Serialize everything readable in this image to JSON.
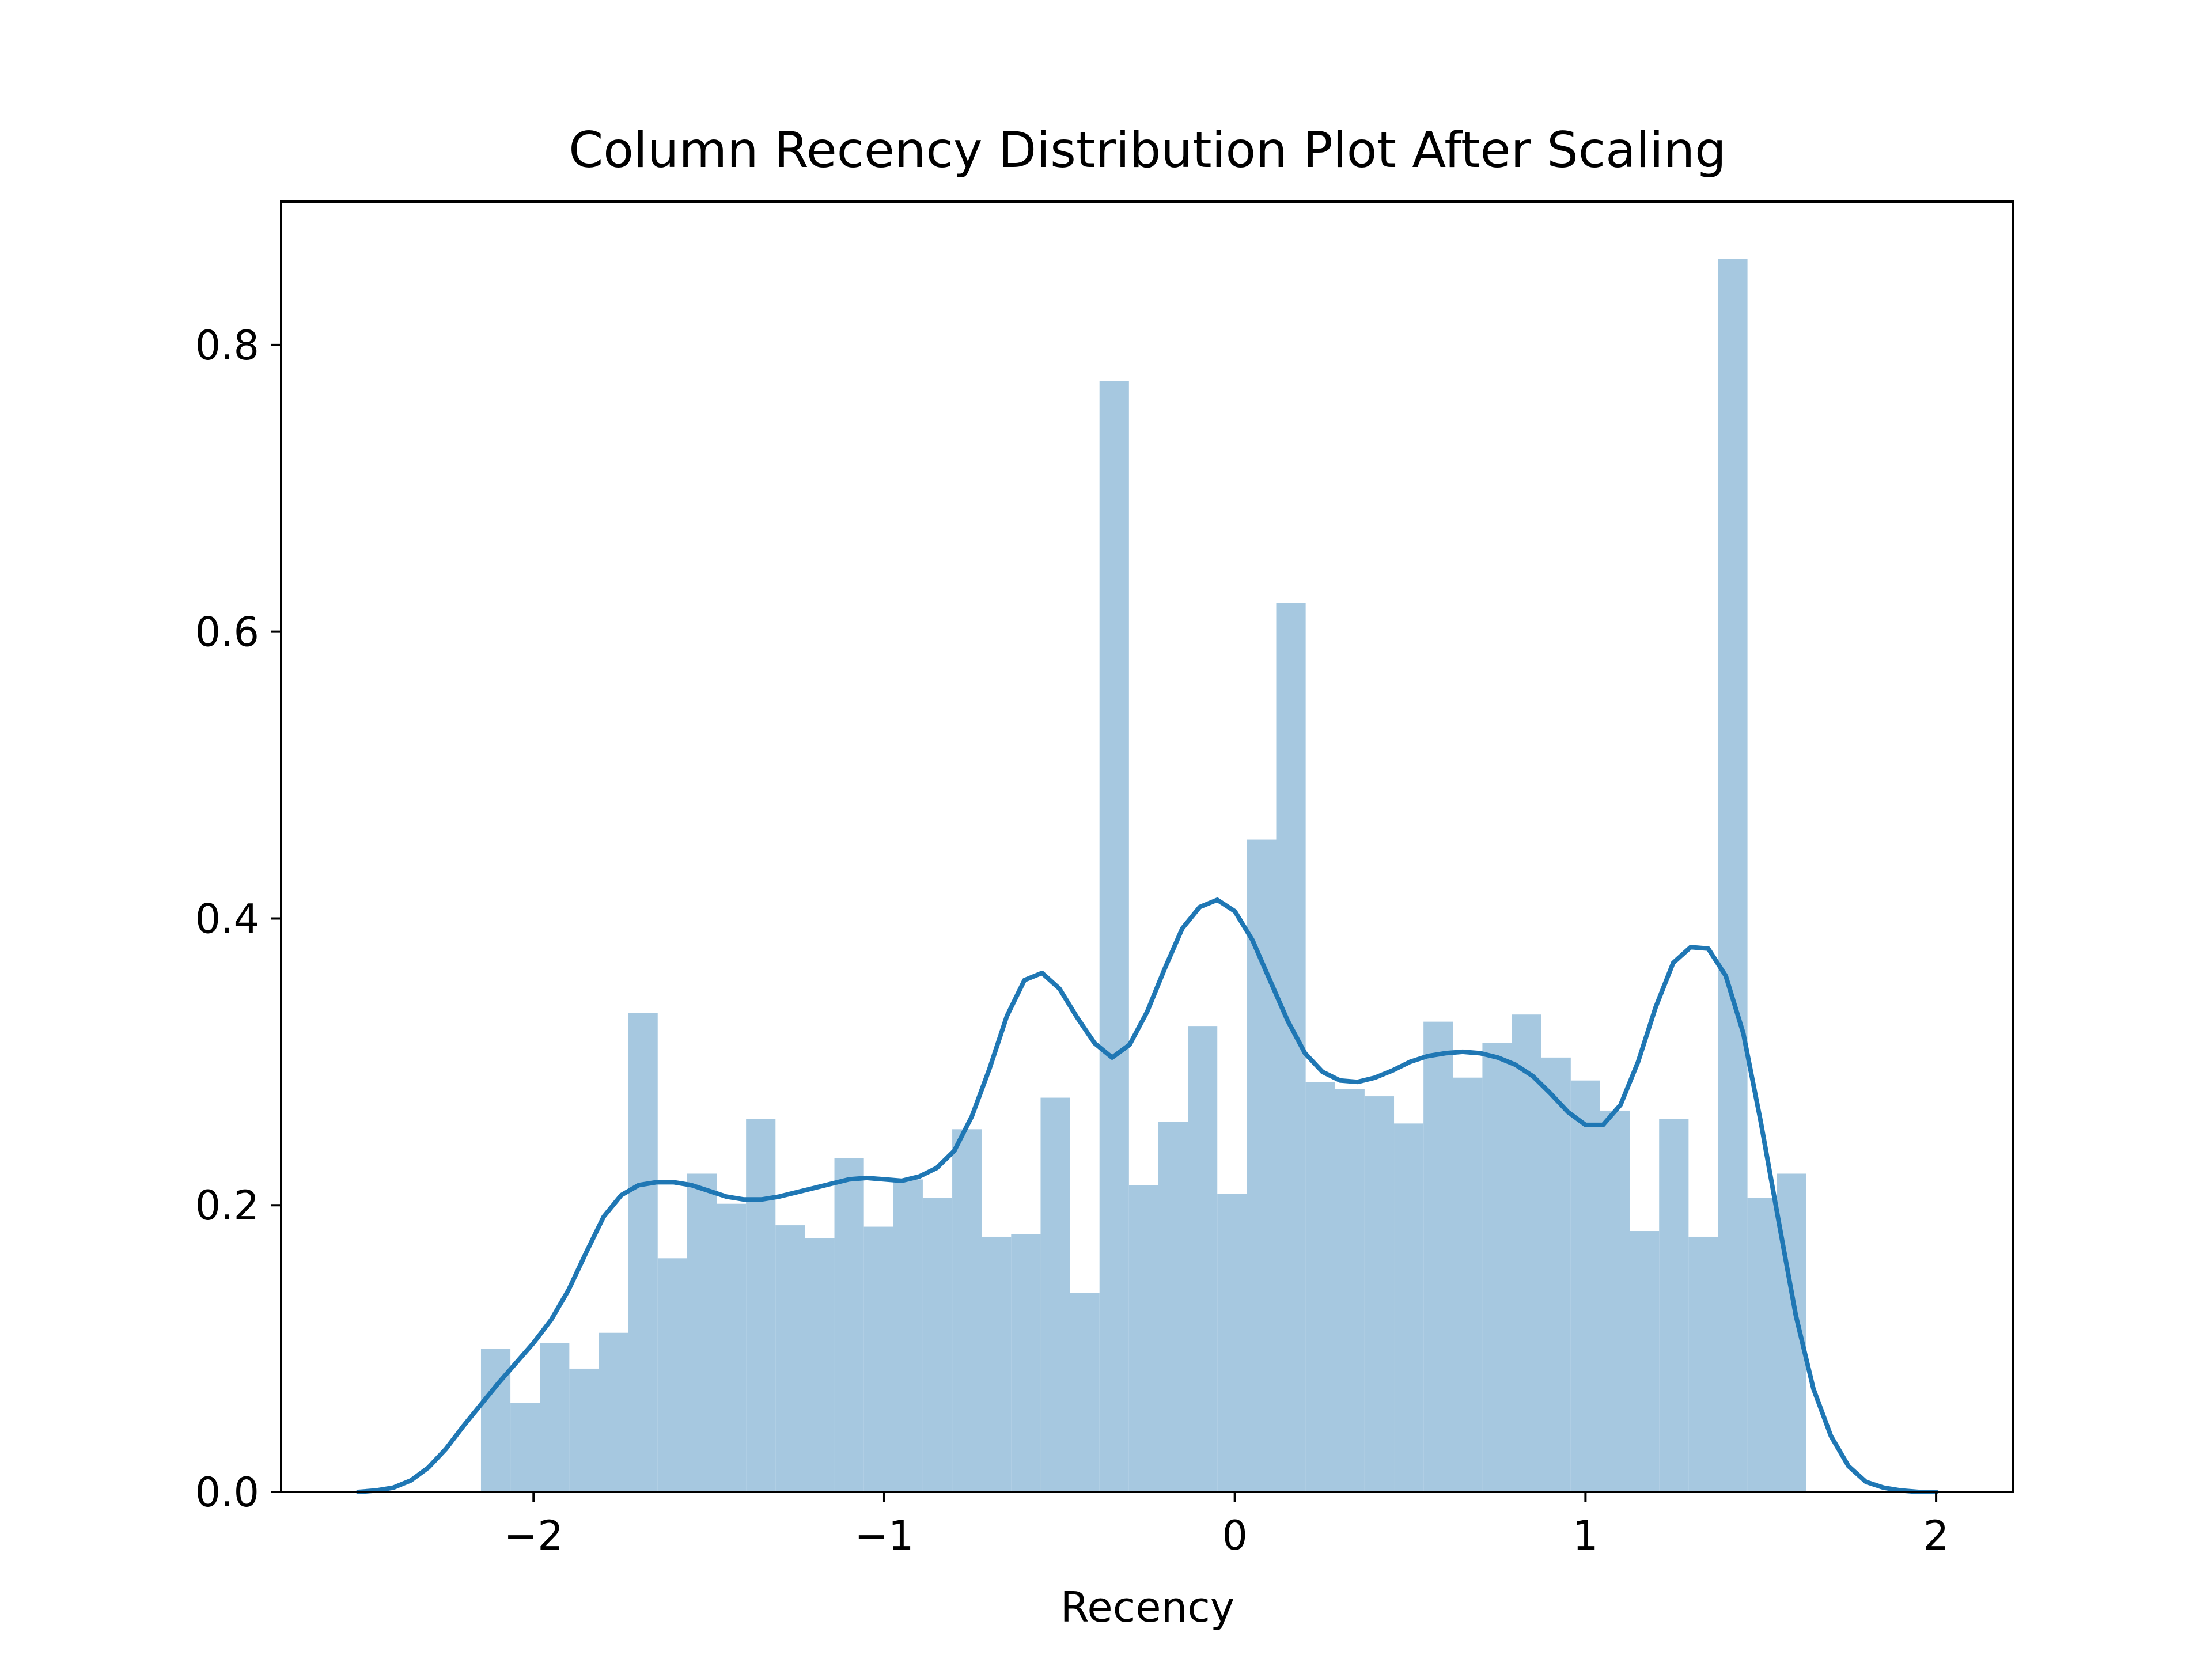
{
  "chart_data": {
    "type": "bar",
    "title": "Column Recency Distribution Plot After Scaling",
    "xlabel": "Recency",
    "ylabel": "",
    "xlim": [
      -2.72,
      2.22
    ],
    "ylim": [
      0,
      0.9
    ],
    "x_ticks": [
      -2,
      -1,
      0,
      1,
      2
    ],
    "x_tick_labels": [
      "−2",
      "−1",
      "0",
      "1",
      "2"
    ],
    "y_ticks": [
      0,
      0.2,
      0.4,
      0.6,
      0.8
    ],
    "y_tick_labels": [
      "0.0",
      "0.2",
      "0.4",
      "0.6",
      "0.8"
    ],
    "grid": false,
    "colors": {
      "histogram": "#a6c8e0",
      "kde": "#1f77b4",
      "axes": "#000000"
    },
    "bins": [
      {
        "start": -2.15,
        "end": -2.066,
        "value": 0.1
      },
      {
        "start": -2.066,
        "end": -1.982,
        "value": 0.062
      },
      {
        "start": -1.982,
        "end": -1.898,
        "value": 0.104
      },
      {
        "start": -1.898,
        "end": -1.814,
        "value": 0.086
      },
      {
        "start": -1.814,
        "end": -1.73,
        "value": 0.111
      },
      {
        "start": -1.73,
        "end": -1.646,
        "value": 0.334
      },
      {
        "start": -1.646,
        "end": -1.562,
        "value": 0.163
      },
      {
        "start": -1.562,
        "end": -1.478,
        "value": 0.222
      },
      {
        "start": -1.478,
        "end": -1.394,
        "value": 0.201
      },
      {
        "start": -1.394,
        "end": -1.31,
        "value": 0.26
      },
      {
        "start": -1.31,
        "end": -1.226,
        "value": 0.186
      },
      {
        "start": -1.226,
        "end": -1.142,
        "value": 0.177
      },
      {
        "start": -1.142,
        "end": -1.058,
        "value": 0.233
      },
      {
        "start": -1.058,
        "end": -0.974,
        "value": 0.185
      },
      {
        "start": -0.974,
        "end": -0.89,
        "value": 0.218
      },
      {
        "start": -0.89,
        "end": -0.806,
        "value": 0.205
      },
      {
        "start": -0.806,
        "end": -0.722,
        "value": 0.253
      },
      {
        "start": -0.722,
        "end": -0.638,
        "value": 0.178
      },
      {
        "start": -0.638,
        "end": -0.554,
        "value": 0.18
      },
      {
        "start": -0.554,
        "end": -0.47,
        "value": 0.275
      },
      {
        "start": -0.47,
        "end": -0.386,
        "value": 0.139
      },
      {
        "start": -0.386,
        "end": -0.302,
        "value": 0.775
      },
      {
        "start": -0.302,
        "end": -0.218,
        "value": 0.214
      },
      {
        "start": -0.218,
        "end": -0.134,
        "value": 0.258
      },
      {
        "start": -0.134,
        "end": -0.05,
        "value": 0.325
      },
      {
        "start": -0.05,
        "end": 0.034,
        "value": 0.208
      },
      {
        "start": 0.034,
        "end": 0.118,
        "value": 0.455
      },
      {
        "start": 0.118,
        "end": 0.202,
        "value": 0.62
      },
      {
        "start": 0.202,
        "end": 0.286,
        "value": 0.286
      },
      {
        "start": 0.286,
        "end": 0.37,
        "value": 0.281
      },
      {
        "start": 0.37,
        "end": 0.454,
        "value": 0.276
      },
      {
        "start": 0.454,
        "end": 0.538,
        "value": 0.257
      },
      {
        "start": 0.538,
        "end": 0.622,
        "value": 0.328
      },
      {
        "start": 0.622,
        "end": 0.706,
        "value": 0.289
      },
      {
        "start": 0.706,
        "end": 0.79,
        "value": 0.313
      },
      {
        "start": 0.79,
        "end": 0.874,
        "value": 0.333
      },
      {
        "start": 0.874,
        "end": 0.958,
        "value": 0.303
      },
      {
        "start": 0.958,
        "end": 1.042,
        "value": 0.287
      },
      {
        "start": 1.042,
        "end": 1.126,
        "value": 0.266
      },
      {
        "start": 1.126,
        "end": 1.21,
        "value": 0.182
      },
      {
        "start": 1.21,
        "end": 1.294,
        "value": 0.26
      },
      {
        "start": 1.294,
        "end": 1.378,
        "value": 0.178
      },
      {
        "start": 1.378,
        "end": 1.462,
        "value": 0.86
      },
      {
        "start": 1.462,
        "end": 1.546,
        "value": 0.205
      },
      {
        "start": 1.546,
        "end": 1.63,
        "value": 0.222
      }
    ],
    "kde": {
      "x": [
        -2.5,
        -2.45,
        -2.4,
        -2.35,
        -2.3,
        -2.25,
        -2.2,
        -2.15,
        -2.1,
        -2.05,
        -2.0,
        -1.95,
        -1.9,
        -1.85,
        -1.8,
        -1.75,
        -1.7,
        -1.65,
        -1.6,
        -1.55,
        -1.5,
        -1.45,
        -1.4,
        -1.35,
        -1.3,
        -1.25,
        -1.2,
        -1.15,
        -1.1,
        -1.05,
        -1.0,
        -0.95,
        -0.9,
        -0.85,
        -0.8,
        -0.75,
        -0.7,
        -0.65,
        -0.6,
        -0.55,
        -0.5,
        -0.45,
        -0.4,
        -0.35,
        -0.3,
        -0.25,
        -0.2,
        -0.15,
        -0.1,
        -0.05,
        0.0,
        0.05,
        0.1,
        0.15,
        0.2,
        0.25,
        0.3,
        0.35,
        0.4,
        0.45,
        0.5,
        0.55,
        0.6,
        0.65,
        0.7,
        0.75,
        0.8,
        0.85,
        0.9,
        0.95,
        1.0,
        1.05,
        1.1,
        1.15,
        1.2,
        1.25,
        1.3,
        1.35,
        1.4,
        1.45,
        1.5,
        1.55,
        1.6,
        1.65,
        1.7,
        1.75,
        1.8,
        1.85,
        1.9,
        1.95,
        2.0
      ],
      "y": [
        0.0,
        0.001,
        0.003,
        0.008,
        0.017,
        0.03,
        0.046,
        0.061,
        0.076,
        0.09,
        0.104,
        0.12,
        0.141,
        0.167,
        0.192,
        0.207,
        0.214,
        0.216,
        0.216,
        0.214,
        0.21,
        0.206,
        0.204,
        0.204,
        0.206,
        0.209,
        0.212,
        0.215,
        0.218,
        0.219,
        0.218,
        0.217,
        0.22,
        0.226,
        0.238,
        0.262,
        0.295,
        0.332,
        0.357,
        0.362,
        0.351,
        0.331,
        0.313,
        0.303,
        0.312,
        0.335,
        0.365,
        0.393,
        0.408,
        0.413,
        0.405,
        0.385,
        0.357,
        0.329,
        0.306,
        0.293,
        0.287,
        0.286,
        0.289,
        0.294,
        0.3,
        0.304,
        0.306,
        0.307,
        0.306,
        0.303,
        0.298,
        0.29,
        0.278,
        0.265,
        0.256,
        0.256,
        0.27,
        0.3,
        0.338,
        0.369,
        0.38,
        0.379,
        0.36,
        0.32,
        0.258,
        0.19,
        0.123,
        0.072,
        0.039,
        0.018,
        0.007,
        0.003,
        0.001,
        0.0,
        0.0
      ]
    }
  }
}
